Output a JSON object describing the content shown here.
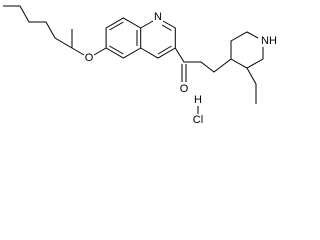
{
  "labels": {
    "quinoline_n": "N",
    "ether_o": "O",
    "ketone_o": "O",
    "piperidine_nh": "NH",
    "salt_h": "H",
    "salt_cl": "Cl"
  }
}
